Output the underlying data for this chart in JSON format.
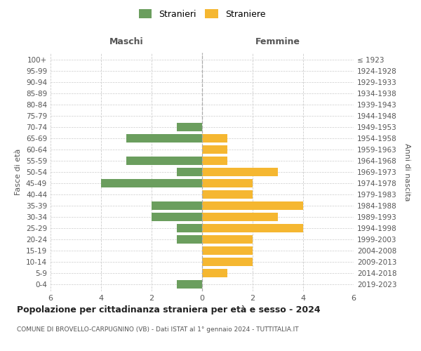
{
  "age_groups": [
    "0-4",
    "5-9",
    "10-14",
    "15-19",
    "20-24",
    "25-29",
    "30-34",
    "35-39",
    "40-44",
    "45-49",
    "50-54",
    "55-59",
    "60-64",
    "65-69",
    "70-74",
    "75-79",
    "80-84",
    "85-89",
    "90-94",
    "95-99",
    "100+"
  ],
  "birth_years": [
    "2019-2023",
    "2014-2018",
    "2009-2013",
    "2004-2008",
    "1999-2003",
    "1994-1998",
    "1989-1993",
    "1984-1988",
    "1979-1983",
    "1974-1978",
    "1969-1973",
    "1964-1968",
    "1959-1963",
    "1954-1958",
    "1949-1953",
    "1944-1948",
    "1939-1943",
    "1934-1938",
    "1929-1933",
    "1924-1928",
    "≤ 1923"
  ],
  "males": [
    1,
    0,
    0,
    0,
    1,
    1,
    2,
    2,
    0,
    4,
    1,
    3,
    0,
    3,
    1,
    0,
    0,
    0,
    0,
    0,
    0
  ],
  "females": [
    0,
    1,
    2,
    2,
    2,
    4,
    3,
    4,
    2,
    2,
    3,
    1,
    1,
    1,
    0,
    0,
    0,
    0,
    0,
    0,
    0
  ],
  "male_color": "#6b9e5e",
  "female_color": "#f5b731",
  "title": "Popolazione per cittadinanza straniera per età e sesso - 2024",
  "subtitle": "COMUNE DI BROVELLO-CARPUGNINO (VB) - Dati ISTAT al 1° gennaio 2024 - TUTTITALIA.IT",
  "xlabel_left": "Maschi",
  "xlabel_right": "Femmine",
  "ylabel_left": "Fasce di età",
  "ylabel_right": "Anni di nascita",
  "legend_male": "Stranieri",
  "legend_female": "Straniere",
  "xlim": 6,
  "background_color": "#ffffff",
  "grid_color": "#cccccc"
}
